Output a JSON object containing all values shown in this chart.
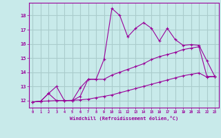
{
  "xlabel": "Windchill (Refroidissement éolien,°C)",
  "bg_color": "#c8eaea",
  "line_color": "#990099",
  "grid_color": "#aacccc",
  "xticks": [
    0,
    1,
    2,
    3,
    4,
    5,
    6,
    7,
    8,
    9,
    10,
    11,
    12,
    13,
    14,
    15,
    16,
    17,
    18,
    19,
    20,
    21,
    22,
    23
  ],
  "yticks": [
    12,
    13,
    14,
    15,
    16,
    17,
    18
  ],
  "ylim": [
    11.5,
    18.9
  ],
  "xlim": [
    -0.5,
    23.5
  ],
  "series1_x": [
    0,
    1,
    2,
    3,
    4,
    5,
    6,
    7,
    8,
    9,
    10,
    11,
    12,
    13,
    14,
    15,
    16,
    17,
    18,
    19,
    20,
    21,
    22,
    23
  ],
  "series1_y": [
    11.9,
    11.95,
    12.5,
    13.0,
    12.0,
    12.0,
    12.9,
    13.5,
    13.5,
    14.9,
    18.5,
    18.0,
    16.5,
    17.1,
    17.5,
    17.1,
    16.2,
    17.1,
    16.3,
    15.9,
    15.95,
    15.9,
    14.8,
    13.7
  ],
  "series2_x": [
    0,
    1,
    2,
    3,
    4,
    5,
    6,
    7,
    8,
    9,
    10,
    11,
    12,
    13,
    14,
    15,
    16,
    17,
    18,
    19,
    20,
    21,
    22,
    23
  ],
  "series2_y": [
    11.9,
    11.95,
    12.5,
    12.0,
    12.0,
    12.0,
    12.3,
    13.5,
    13.5,
    13.5,
    13.8,
    14.0,
    14.2,
    14.4,
    14.6,
    14.9,
    15.1,
    15.25,
    15.4,
    15.6,
    15.7,
    15.8,
    13.7,
    13.7
  ],
  "series3_x": [
    0,
    1,
    2,
    3,
    4,
    5,
    6,
    7,
    8,
    9,
    10,
    11,
    12,
    13,
    14,
    15,
    16,
    17,
    18,
    19,
    20,
    21,
    22,
    23
  ],
  "series3_y": [
    11.9,
    11.95,
    11.97,
    12.0,
    12.0,
    12.02,
    12.05,
    12.1,
    12.2,
    12.3,
    12.4,
    12.55,
    12.7,
    12.85,
    13.0,
    13.15,
    13.3,
    13.45,
    13.6,
    13.75,
    13.85,
    13.95,
    13.65,
    13.7
  ]
}
